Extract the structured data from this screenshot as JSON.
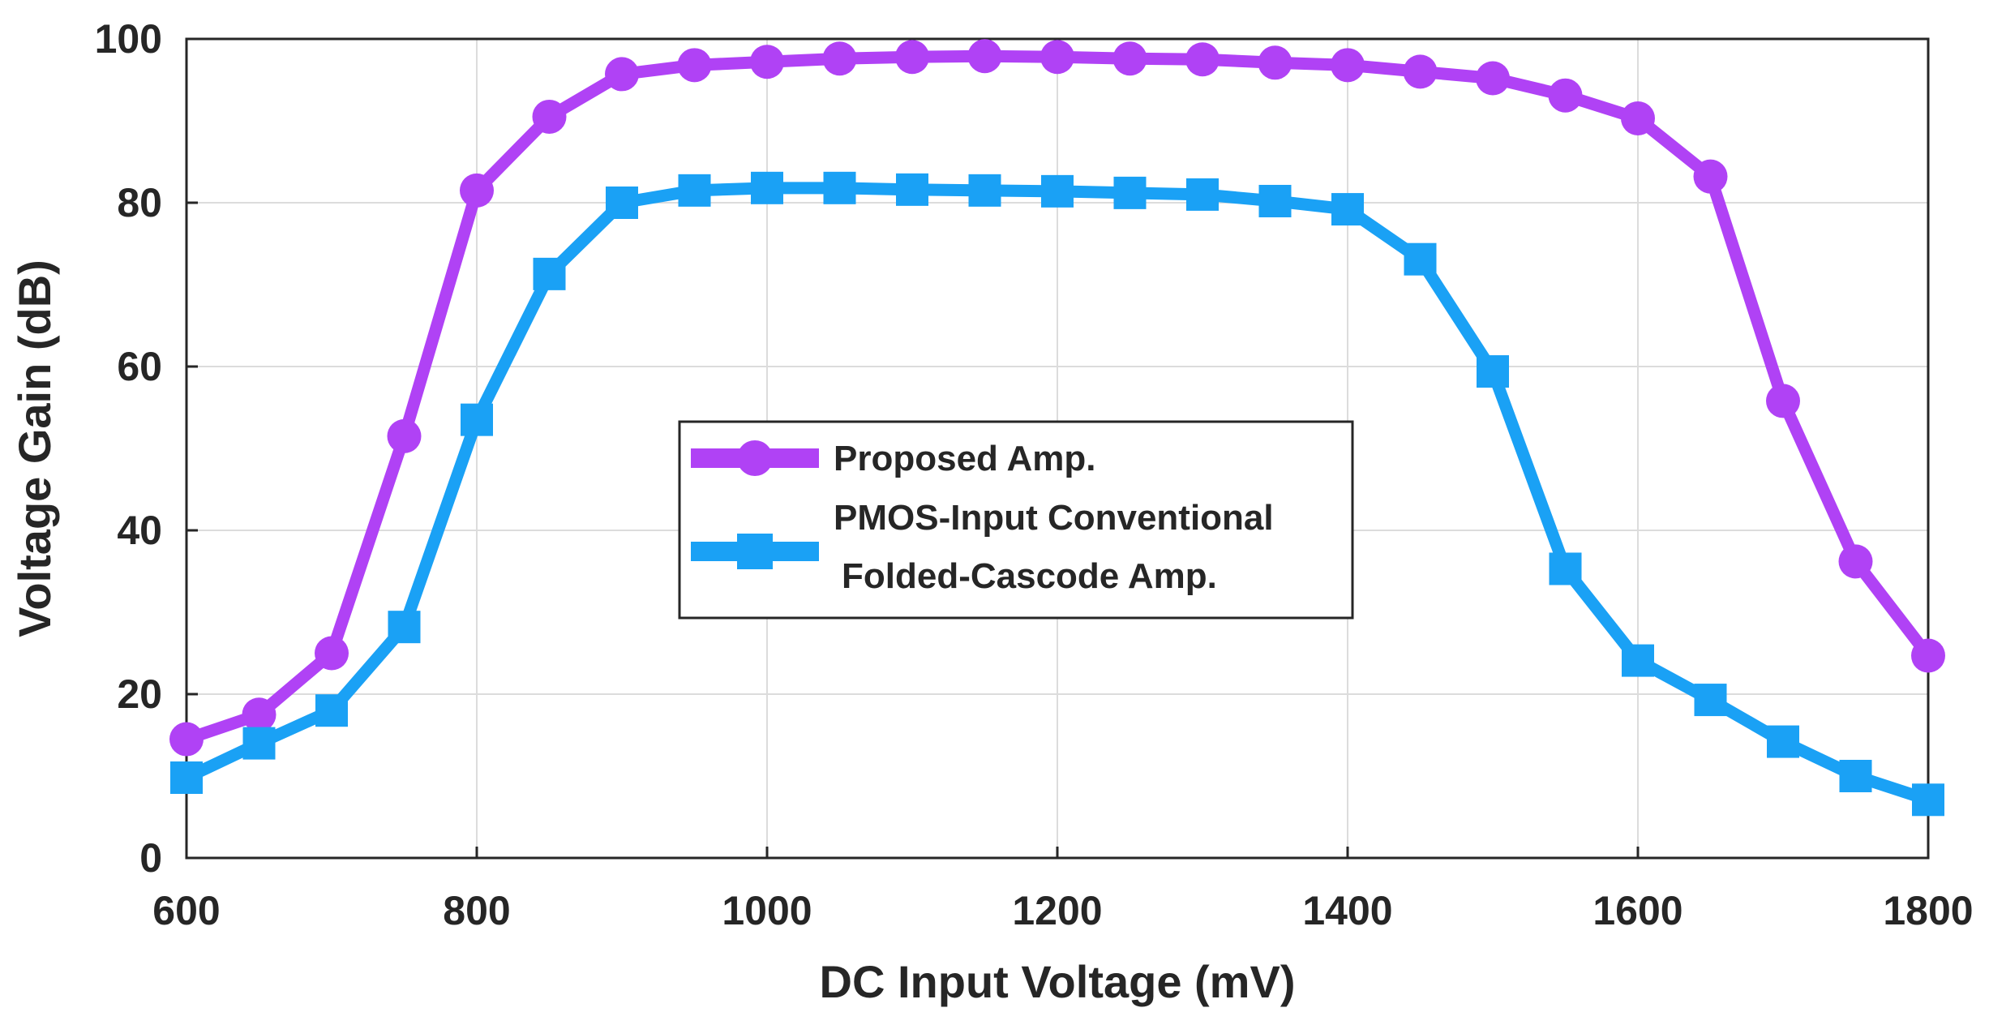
{
  "chart_data": {
    "type": "line",
    "title": "",
    "xlabel": "DC Input Voltage (mV)",
    "ylabel": "Voltage Gain (dB)",
    "xlim": [
      600,
      1800
    ],
    "ylim": [
      0,
      100
    ],
    "xticks": [
      600,
      800,
      1000,
      1200,
      1400,
      1600,
      1800
    ],
    "yticks": [
      0,
      20,
      40,
      60,
      80,
      100
    ],
    "grid": true,
    "legend_position": "center",
    "x": [
      600,
      650,
      700,
      750,
      800,
      850,
      900,
      950,
      1000,
      1050,
      1100,
      1150,
      1200,
      1250,
      1300,
      1350,
      1400,
      1450,
      1500,
      1550,
      1600,
      1650,
      1700,
      1750,
      1800
    ],
    "series": [
      {
        "name": "Proposed Amp.",
        "color": "#b042f5",
        "marker": "circle",
        "values": [
          14.5,
          17.5,
          25,
          51.5,
          81.5,
          90.5,
          95.7,
          96.8,
          97.2,
          97.6,
          97.8,
          97.9,
          97.8,
          97.6,
          97.5,
          97.1,
          96.8,
          96.0,
          95.2,
          93.1,
          90.3,
          83.2,
          55.8,
          36.2,
          24.7
        ]
      },
      {
        "name": "PMOS-Input Conventional Folded-Cascode Amp.",
        "name_lines": [
          "PMOS-Input Conventional",
          "Folded-Cascode Amp."
        ],
        "color": "#1aa1f5",
        "marker": "square",
        "values": [
          9.8,
          14.0,
          18.0,
          28.2,
          53.5,
          71.3,
          80.0,
          81.5,
          81.8,
          81.8,
          81.6,
          81.5,
          81.4,
          81.2,
          81.0,
          80.2,
          79.2,
          73.1,
          59.4,
          35.3,
          24.1,
          19.3,
          14.2,
          10.0,
          7.1
        ]
      }
    ]
  }
}
